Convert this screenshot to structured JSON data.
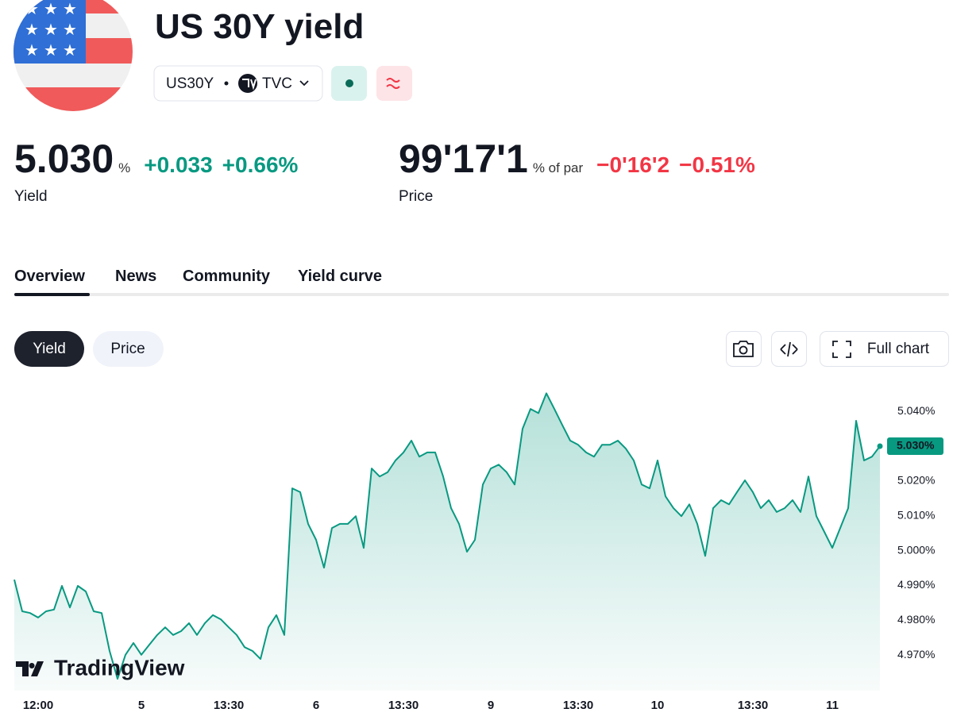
{
  "header": {
    "title": "US 30Y yield",
    "symbol": "US30Y",
    "exchange": "TVC"
  },
  "quotes": [
    {
      "value": "5.030",
      "unit": "%",
      "change": "+0.033",
      "change_percent": "+0.66%",
      "label": "Yield"
    },
    {
      "value": "99'17'1",
      "unit": "% of par",
      "change": "−0'16'2",
      "change_percent": "−0.51%",
      "label": "Price"
    }
  ],
  "tabs": [
    "Overview",
    "News",
    "Community",
    "Yield curve"
  ],
  "chart_toggle": [
    "Yield",
    "Price"
  ],
  "chart_actions": {
    "full_chart": "Full chart"
  },
  "chart_data": {
    "type": "line",
    "watermark": "TradingView",
    "color": "#089981",
    "grid": false,
    "categories": [
      null,
      null,
      null,
      "12:00",
      null,
      null,
      null,
      null,
      null,
      null,
      null,
      null,
      null,
      null,
      null,
      null,
      "5",
      null,
      null,
      null,
      null,
      null,
      null,
      null,
      null,
      null,
      null,
      "13:30",
      null,
      null,
      null,
      null,
      null,
      null,
      null,
      null,
      null,
      null,
      "6",
      null,
      null,
      null,
      null,
      null,
      null,
      null,
      null,
      null,
      null,
      "13:30",
      null,
      null,
      null,
      null,
      null,
      null,
      null,
      null,
      null,
      null,
      "9",
      null,
      null,
      null,
      null,
      null,
      null,
      null,
      null,
      null,
      null,
      "13:30",
      null,
      null,
      null,
      null,
      null,
      null,
      null,
      null,
      null,
      "10",
      null,
      null,
      null,
      null,
      null,
      null,
      null,
      null,
      null,
      null,
      null,
      "13:30",
      null,
      null,
      null,
      null,
      null,
      null,
      null,
      null,
      null,
      "11",
      null,
      null,
      null,
      null,
      null,
      null
    ],
    "values": [
      4.9917,
      4.9826,
      4.9821,
      4.9808,
      4.9826,
      4.9831,
      4.9899,
      4.9837,
      4.9899,
      4.9883,
      4.9826,
      4.9821,
      4.9712,
      4.9632,
      4.9701,
      4.9735,
      4.9701,
      4.973,
      4.9758,
      4.978,
      4.9758,
      4.9769,
      4.9792,
      4.9758,
      4.9792,
      4.9815,
      4.9803,
      4.978,
      4.9758,
      4.9723,
      4.9712,
      4.9689,
      4.978,
      4.9815,
      4.9758,
      5.0179,
      5.0168,
      5.0077,
      5.0031,
      4.9951,
      5.0065,
      5.0077,
      5.0077,
      5.0099,
      5.0008,
      5.0236,
      5.0213,
      5.0225,
      5.0259,
      5.0282,
      5.0316,
      5.027,
      5.0282,
      5.0282,
      5.0213,
      5.0122,
      5.0077,
      4.9997,
      5.0031,
      5.019,
      5.0236,
      5.0247,
      5.0225,
      5.019,
      5.035,
      5.0407,
      5.0395,
      5.0452,
      5.0407,
      5.0361,
      5.0316,
      5.0304,
      5.0282,
      5.027,
      5.0304,
      5.0304,
      5.0316,
      5.0293,
      5.0259,
      5.019,
      5.0179,
      5.0259,
      5.0156,
      5.0122,
      5.0099,
      5.0133,
      5.0077,
      4.9985,
      5.0122,
      5.0145,
      5.0133,
      5.0168,
      5.0202,
      5.0168,
      5.0122,
      5.0145,
      5.0111,
      5.0122,
      5.0145,
      5.0111,
      5.0213,
      5.0099,
      5.0054,
      5.0008,
      5.0065,
      5.0122,
      5.0373,
      5.0259,
      5.027,
      5.03
    ],
    "ylim": [
      4.9598,
      5.0487
    ],
    "yticks": [
      {
        "value": 4.97,
        "label": "4.970%"
      },
      {
        "value": 4.98,
        "label": "4.980%"
      },
      {
        "value": 4.99,
        "label": "4.990%"
      },
      {
        "value": 5.0,
        "label": "5.000%"
      },
      {
        "value": 5.01,
        "label": "5.010%"
      },
      {
        "value": 5.02,
        "label": "5.020%"
      },
      {
        "value": 5.04,
        "label": "5.040%"
      }
    ],
    "last_price_label": {
      "value": 5.03,
      "label": "5.030%"
    }
  }
}
